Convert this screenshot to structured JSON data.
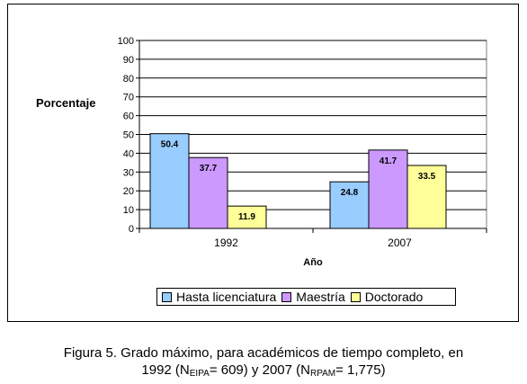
{
  "chart_data": {
    "type": "bar",
    "categories": [
      "1992",
      "2007"
    ],
    "series": [
      {
        "name": "Hasta licenciatura",
        "values": [
          50.4,
          24.8
        ],
        "color": "#99CCFF"
      },
      {
        "name": "Maestría",
        "values": [
          37.7,
          41.7
        ],
        "color": "#CC99FF"
      },
      {
        "name": "Doctorado",
        "values": [
          11.9,
          33.5
        ],
        "color": "#FFFF99"
      }
    ],
    "xlabel": "Año",
    "ylabel": "Porcentaje",
    "ylim": [
      0,
      100
    ],
    "yticks": [
      "0",
      "10",
      "20",
      "30",
      "40",
      "50",
      "60",
      "70",
      "80",
      "90",
      "100"
    ],
    "grid": true,
    "legend_position": "bottom"
  },
  "caption": {
    "line1": "Figura 5. Grado máximo, para académicos de tiempo completo, en",
    "line2_a": "1992 (N",
    "sub1": "EIPA",
    "line2_b": "= 609) y 2007 (N",
    "sub2": "RPAM",
    "line2_c": "= 1,775)"
  }
}
